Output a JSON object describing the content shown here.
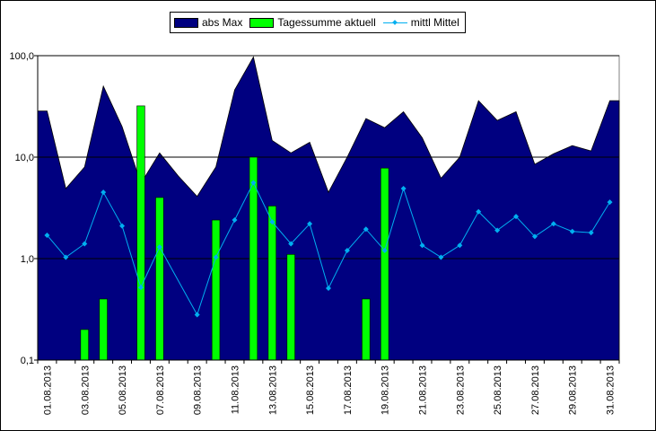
{
  "chart_data": {
    "type": "bar",
    "yscale": "log",
    "ylim": [
      0.1,
      100
    ],
    "yticks": [
      "0,1",
      "1,0",
      "10,0",
      "100,0"
    ],
    "grid": "horizontal major",
    "legend_position": "top",
    "x": [
      "01.08.2013",
      "02.08.2013",
      "03.08.2013",
      "04.08.2013",
      "05.08.2013",
      "06.08.2013",
      "07.08.2013",
      "08.08.2013",
      "09.08.2013",
      "10.08.2013",
      "11.08.2013",
      "12.08.2013",
      "13.08.2013",
      "14.08.2013",
      "15.08.2013",
      "16.08.2013",
      "17.08.2013",
      "18.08.2013",
      "19.08.2013",
      "20.08.2013",
      "21.08.2013",
      "22.08.2013",
      "23.08.2013",
      "24.08.2013",
      "25.08.2013",
      "26.08.2013",
      "27.08.2013",
      "28.08.2013",
      "29.08.2013",
      "30.08.2013",
      "31.08.2013"
    ],
    "xtick_labels": [
      "01.08.2013",
      "03.08.2013",
      "05.08.2013",
      "07.08.2013",
      "09.08.2013",
      "11.08.2013",
      "13.08.2013",
      "15.08.2013",
      "17.08.2013",
      "19.08.2013",
      "21.08.2013",
      "23.08.2013",
      "25.08.2013",
      "27.08.2013",
      "29.08.2013",
      "31.08.2013"
    ],
    "series": [
      {
        "name": "abs Max",
        "kind": "area",
        "color": "#000080",
        "values": [
          28.5,
          4.9,
          8.0,
          50.0,
          20.0,
          5.5,
          11.0,
          6.5,
          4.1,
          8.0,
          46.0,
          97.0,
          14.6,
          11.0,
          14.0,
          4.5,
          10.0,
          24.0,
          19.5,
          28.0,
          15.5,
          6.2,
          10.0,
          36.0,
          23.0,
          28.0,
          8.5,
          10.8,
          13.0,
          11.5,
          36.0
        ]
      },
      {
        "name": "Tagessumme aktuell",
        "kind": "bar",
        "color": "#00ff00",
        "values": [
          null,
          null,
          0.2,
          0.4,
          null,
          32.0,
          4.0,
          null,
          null,
          2.4,
          null,
          10.0,
          3.3,
          1.1,
          null,
          null,
          null,
          0.4,
          7.8,
          null,
          null,
          null,
          null,
          null,
          null,
          null,
          null,
          null,
          null,
          null,
          null
        ]
      },
      {
        "name": "mittl Mittel",
        "kind": "line",
        "color": "#00b0f0",
        "values": [
          1.7,
          1.03,
          1.4,
          4.5,
          2.1,
          0.52,
          1.3,
          null,
          0.28,
          1.03,
          2.4,
          5.6,
          2.3,
          1.4,
          2.2,
          0.51,
          1.2,
          1.95,
          1.2,
          4.9,
          1.35,
          1.03,
          1.35,
          2.9,
          1.9,
          2.6,
          1.65,
          2.2,
          1.85,
          1.8,
          3.6
        ]
      }
    ]
  }
}
